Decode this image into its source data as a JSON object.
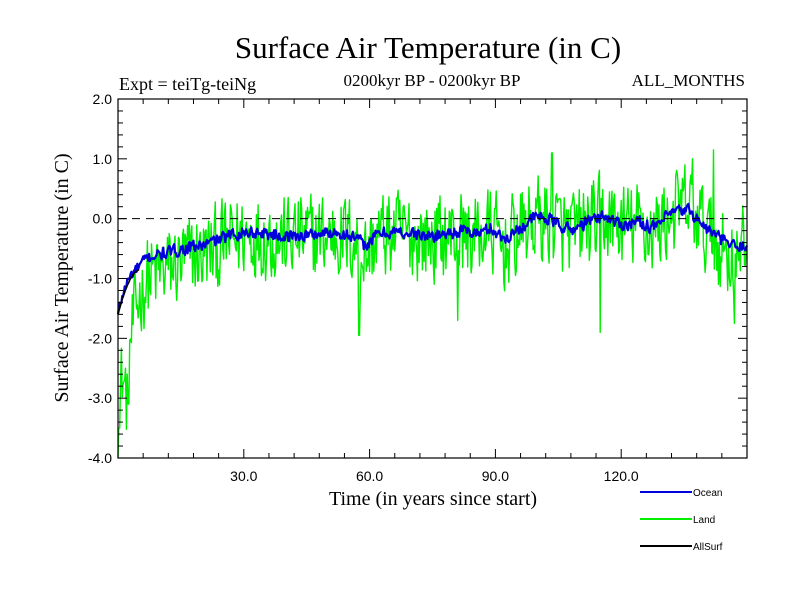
{
  "chart_data": {
    "type": "line",
    "title": "Surface Air Temperature (in C)",
    "subtitle_left": "Expt = teiTg-teiNg",
    "subtitle_center": "0200kyr BP - 0200kyr BP",
    "subtitle_right": "ALL_MONTHS",
    "xlabel": "Time (in years since start)",
    "ylabel": "Surface Air Temperature (in C)",
    "xlim": [
      0,
      150
    ],
    "ylim": [
      -4.0,
      2.0
    ],
    "x_ticks": [
      30,
      60,
      90,
      120
    ],
    "x_tick_labels": [
      "30.0",
      "60.0",
      "90.0",
      "120.0"
    ],
    "y_ticks": [
      -4,
      -3,
      -2,
      -1,
      0,
      1,
      2
    ],
    "y_tick_labels": [
      "-4.0",
      "-3.0",
      "-2.0",
      "-1.0",
      "0.0",
      "1.0",
      "2.0"
    ],
    "reference_line": {
      "y": 0.0,
      "style": "dashed"
    },
    "series": [
      {
        "name": "Land",
        "color": "#00ee00",
        "x": [
          0,
          1,
          2,
          3,
          5,
          7,
          10,
          13,
          16,
          20,
          24,
          28,
          32,
          36,
          40,
          44,
          48,
          52,
          56,
          59,
          62,
          66,
          70,
          74,
          78,
          82,
          86,
          89,
          92,
          96,
          100,
          104,
          108,
          112,
          116,
          120,
          124,
          128,
          132,
          136,
          140,
          144,
          148,
          150
        ],
        "values": [
          -3.4,
          -2.6,
          -3.0,
          -2.0,
          -1.3,
          -1.0,
          -0.9,
          -0.8,
          -0.7,
          -0.6,
          -0.5,
          -0.3,
          -0.25,
          -0.3,
          -0.35,
          -0.3,
          -0.3,
          -0.25,
          -0.35,
          -0.6,
          -0.3,
          -0.25,
          -0.3,
          -0.35,
          -0.3,
          -0.25,
          -0.3,
          -0.2,
          -0.5,
          -0.2,
          0.0,
          -0.1,
          -0.3,
          -0.1,
          0.0,
          -0.15,
          -0.1,
          -0.2,
          0.1,
          0.2,
          -0.2,
          -0.5,
          -0.7,
          -0.4
        ],
        "noise_amplitude": 0.85,
        "peaks": [
          [
            103.5,
            1.1
          ],
          [
            137,
            1.0
          ],
          [
            142,
            1.15
          ]
        ],
        "troughs": [
          [
            0.3,
            -3.5
          ],
          [
            2.5,
            -3.1
          ],
          [
            57.5,
            -1.95
          ],
          [
            81,
            -1.7
          ],
          [
            115,
            -1.9
          ],
          [
            147,
            -1.75
          ]
        ]
      },
      {
        "name": "Ocean",
        "color": "#0000dd",
        "x": [
          0,
          1,
          2,
          3,
          5,
          7,
          10,
          13,
          16,
          20,
          24,
          28,
          32,
          36,
          40,
          44,
          48,
          52,
          56,
          59,
          62,
          66,
          70,
          74,
          78,
          82,
          86,
          89,
          92,
          96,
          100,
          104,
          108,
          112,
          116,
          120,
          124,
          128,
          132,
          136,
          140,
          144,
          148,
          150
        ],
        "values": [
          -1.6,
          -1.3,
          -1.1,
          -0.95,
          -0.8,
          -0.65,
          -0.6,
          -0.55,
          -0.5,
          -0.45,
          -0.35,
          -0.25,
          -0.22,
          -0.25,
          -0.3,
          -0.28,
          -0.25,
          -0.22,
          -0.3,
          -0.45,
          -0.25,
          -0.22,
          -0.25,
          -0.3,
          -0.25,
          -0.2,
          -0.25,
          -0.15,
          -0.35,
          -0.15,
          0.05,
          -0.05,
          -0.2,
          -0.05,
          0.05,
          -0.1,
          -0.05,
          -0.15,
          0.1,
          0.15,
          -0.15,
          -0.35,
          -0.5,
          -0.4
        ],
        "noise_amplitude": 0.12
      },
      {
        "name": "AllSurf",
        "color": "#000000",
        "x": [
          0,
          1,
          2,
          3,
          4,
          5
        ],
        "values": [
          -1.6,
          -1.35,
          -1.15,
          -1.0,
          -0.9,
          -0.85
        ]
      }
    ],
    "legend": [
      {
        "name": "Ocean",
        "color": "#0000dd"
      },
      {
        "name": "Land",
        "color": "#00ee00"
      },
      {
        "name": "AllSurf",
        "color": "#000000"
      }
    ],
    "legend_position": "bottom-right"
  }
}
